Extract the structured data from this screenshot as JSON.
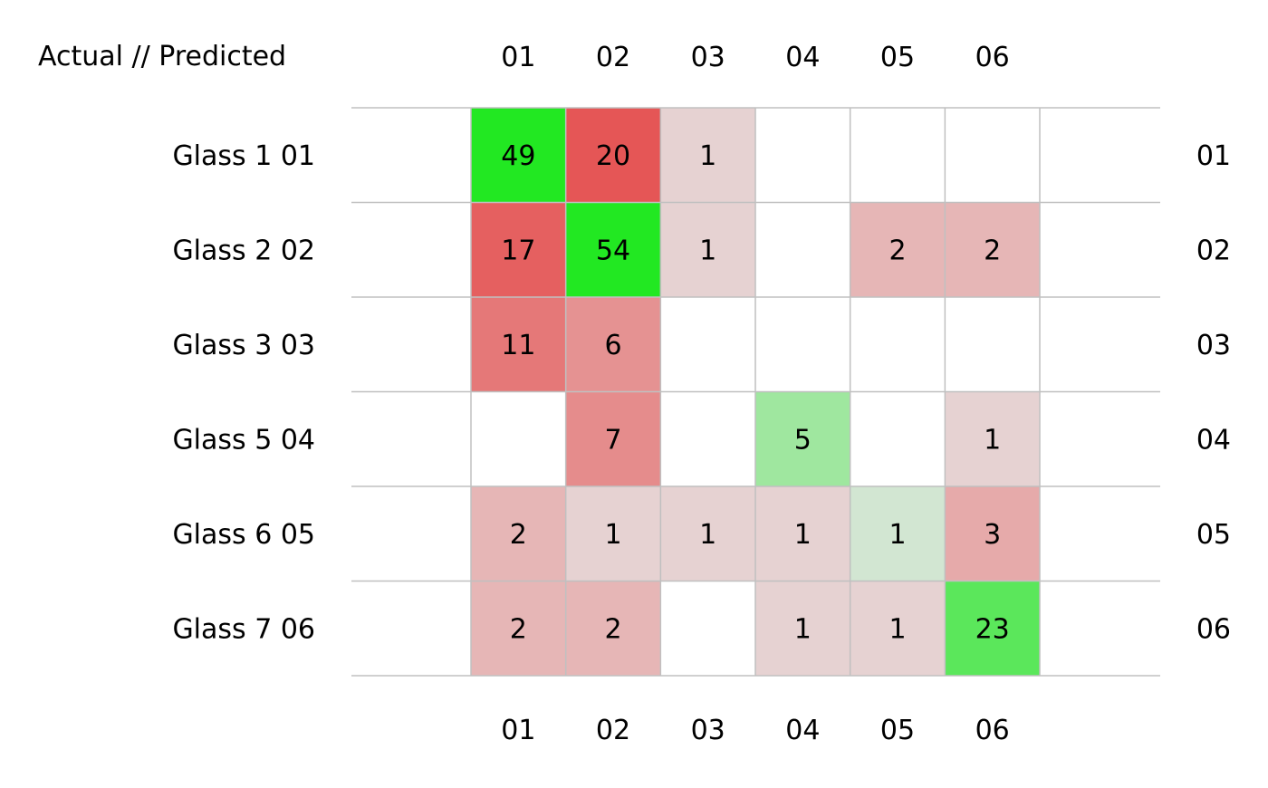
{
  "chart_data": {
    "type": "heatmap",
    "title": "Actual // Predicted",
    "columns": [
      "01",
      "02",
      "03",
      "04",
      "05",
      "06"
    ],
    "rows": [
      {
        "label": "Glass 1 01",
        "right_label": "01"
      },
      {
        "label": "Glass 2 02",
        "right_label": "02"
      },
      {
        "label": "Glass 3 03",
        "right_label": "03"
      },
      {
        "label": "Glass 5 04",
        "right_label": "04"
      },
      {
        "label": "Glass 6 05",
        "right_label": "05"
      },
      {
        "label": "Glass 7 06",
        "right_label": "06"
      }
    ],
    "values": [
      [
        49,
        20,
        1,
        null,
        null,
        null
      ],
      [
        17,
        54,
        1,
        null,
        2,
        2
      ],
      [
        11,
        6,
        null,
        null,
        null,
        null
      ],
      [
        null,
        7,
        null,
        5,
        null,
        1
      ],
      [
        2,
        1,
        1,
        1,
        1,
        3
      ],
      [
        2,
        2,
        null,
        1,
        1,
        23
      ]
    ],
    "colors": {
      "correct_high": "#22e822",
      "correct_low": "#d2e6d2",
      "error_high": "#e55656",
      "error_low": "#e6d2d2",
      "grid_line": "#c0c0c0"
    }
  }
}
